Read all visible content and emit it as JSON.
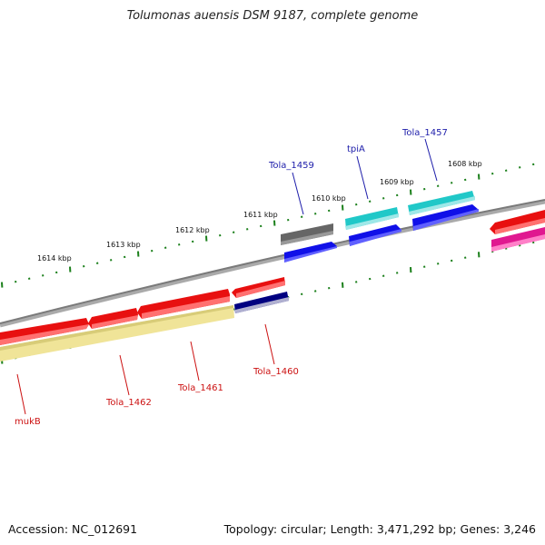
{
  "title": "Tolumonas auensis DSM 9187, complete genome",
  "footer": {
    "accession": "Accession: NC_012691",
    "topology": "Topology: circular; Length: 3,471,292 bp; Genes: 3,246"
  },
  "ruler": [
    "1614 kbp",
    "1613 kbp",
    "1612 kbp",
    "1611 kbp",
    "1610 kbp",
    "1609 kbp",
    "1608 kbp"
  ],
  "gene_labels_top": [
    "Tola_1459",
    "tpiA",
    "Tola_1457"
  ],
  "gene_labels_bottom": [
    "mukB",
    "Tola_1462",
    "Tola_1461",
    "Tola_1460"
  ],
  "colors": {
    "backbone": "#888888",
    "tick": "#1a7f1a",
    "forward_label": "#1d1daa",
    "reverse_label": "#cc1111",
    "red_gene": "#e81010",
    "blue_gene": "#1010e8",
    "cyan_gene": "#20c8c8",
    "gray_gene": "#666666",
    "navy_gene": "#000080",
    "magenta_gene": "#e01890",
    "yellow_gene": "#f0e498"
  }
}
